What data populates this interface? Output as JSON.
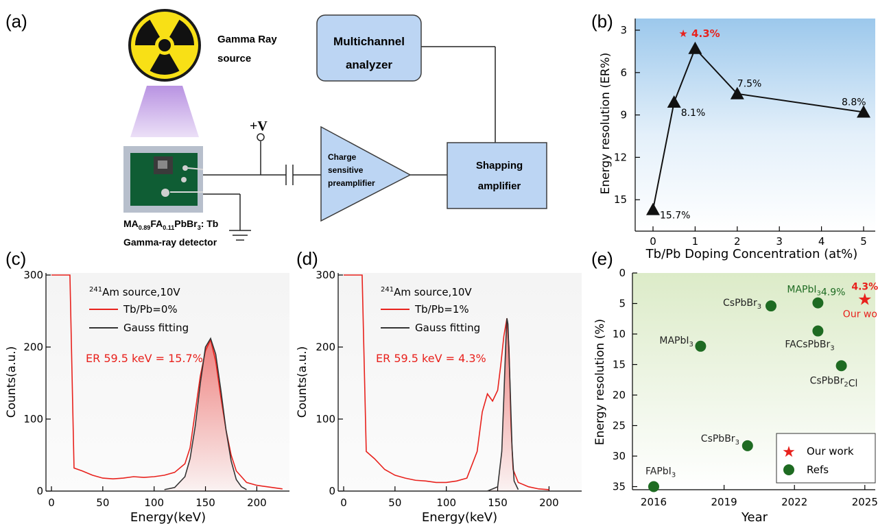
{
  "panels": {
    "a": "(a)",
    "b": "(b)",
    "c": "(c)",
    "d": "(d)",
    "e": "(e)"
  },
  "diagram": {
    "source_line1": "Gamma Ray",
    "source_line2": "source",
    "mca_line1": "Multichannel",
    "mca_line2": "analyzer",
    "voltage": "+V",
    "preamp_line1": "Charge",
    "preamp_line2": "sensitive",
    "preamp_line3": "preamplifier",
    "shaping_line1": "Shapping",
    "shaping_line2": "amplifier",
    "detector_line2": "Gamma-ray detector"
  },
  "colors": {
    "red": "#e8211c",
    "dark_green": "#1e6b22",
    "box_fill": "#bcd5f3",
    "box_stroke": "#3c3c3c"
  },
  "chart_data": [
    {
      "panel": "b",
      "type": "line",
      "marker": "triangle",
      "x": [
        0,
        0.5,
        1,
        2,
        5
      ],
      "y": [
        15.7,
        8.1,
        4.3,
        7.5,
        8.8
      ],
      "point_labels": [
        "15.7%",
        "8.1%",
        "4.3%",
        "7.5%",
        "8.8%"
      ],
      "highlight_label": "4.3%",
      "xlabel": "Tb/Pb Doping Concentration (at%)",
      "ylabel": "Energy resolution (ER%)",
      "x_ticks": [
        "0",
        "1",
        "2",
        "3",
        "4",
        "5"
      ],
      "y_ticks": [
        "3",
        "6",
        "9",
        "12",
        "15"
      ],
      "y_inverted": true
    },
    {
      "panel": "c",
      "type": "line",
      "xlabel": "Energy(keV)",
      "ylabel": "Counts(a.u.)",
      "x_ticks": [
        "0",
        "50",
        "100",
        "150",
        "200"
      ],
      "y_ticks": [
        "0",
        "100",
        "200",
        "300"
      ],
      "xlim": [
        0,
        225
      ],
      "ylim": [
        0,
        300
      ],
      "legend_title": "Am source,10V",
      "legend_sup": "241",
      "series": [
        {
          "name": "Tb/Pb=0%",
          "x": [
            0,
            10,
            18,
            22,
            30,
            40,
            50,
            60,
            70,
            80,
            90,
            100,
            110,
            120,
            130,
            135,
            140,
            145,
            150,
            155,
            160,
            165,
            170,
            175,
            180,
            185,
            190,
            200,
            210,
            220,
            225
          ],
          "y": [
            300,
            300,
            300,
            32,
            28,
            22,
            18,
            17,
            18,
            20,
            19,
            20,
            22,
            26,
            38,
            60,
            110,
            160,
            195,
            210,
            180,
            130,
            85,
            50,
            28,
            20,
            12,
            8,
            6,
            4,
            3
          ]
        },
        {
          "name": "Gauss fitting",
          "x": [
            110,
            120,
            130,
            135,
            140,
            145,
            150,
            155,
            160,
            165,
            170,
            175,
            180,
            185,
            190
          ],
          "y": [
            2,
            5,
            20,
            45,
            90,
            150,
            200,
            212,
            190,
            140,
            85,
            42,
            16,
            6,
            2
          ]
        }
      ],
      "annotation": "ER 59.5 keV = 15.7%"
    },
    {
      "panel": "d",
      "type": "line",
      "xlabel": "Energy(keV)",
      "ylabel": "Counts(a.u.)",
      "x_ticks": [
        "0",
        "50",
        "100",
        "150",
        "200"
      ],
      "y_ticks": [
        "0",
        "100",
        "200",
        "300"
      ],
      "xlim": [
        0,
        225
      ],
      "ylim": [
        0,
        300
      ],
      "legend_title": "Am source,10V",
      "legend_sup": "241",
      "series": [
        {
          "name": "Tb/Pb=1%",
          "x": [
            0,
            10,
            18,
            22,
            30,
            40,
            50,
            60,
            70,
            80,
            90,
            100,
            110,
            120,
            130,
            135,
            140,
            145,
            150,
            153,
            156,
            159,
            161,
            163,
            165,
            170,
            180,
            190,
            200
          ],
          "y": [
            300,
            300,
            300,
            55,
            45,
            30,
            22,
            18,
            15,
            14,
            12,
            12,
            14,
            18,
            55,
            110,
            135,
            125,
            140,
            175,
            215,
            240,
            200,
            90,
            30,
            12,
            6,
            3,
            2
          ]
        },
        {
          "name": "Gauss fitting",
          "x": [
            140,
            150,
            154,
            156,
            158,
            159,
            160,
            162,
            164,
            166,
            170
          ],
          "y": [
            0,
            6,
            55,
            130,
            210,
            240,
            232,
            150,
            60,
            14,
            2
          ]
        }
      ],
      "annotation": "ER 59.5 keV = 4.3%"
    },
    {
      "panel": "e",
      "type": "scatter",
      "xlabel": "Year",
      "ylabel": "Energy resolution (%)",
      "x_ticks": [
        "2016",
        "2019",
        "2022",
        "2025"
      ],
      "y_ticks": [
        "0",
        "5",
        "10",
        "15",
        "20",
        "25",
        "30",
        "35"
      ],
      "y_inverted": true,
      "series": [
        {
          "name": "Our work",
          "points": [
            {
              "x": 2025,
              "y": 4.3,
              "label": "4.3%",
              "label2": "Our work"
            }
          ]
        },
        {
          "name": "Refs",
          "points": [
            {
              "x": 2016,
              "y": 35,
              "label": "FAPbI3"
            },
            {
              "x": 2018,
              "y": 12,
              "label": "MAPbI3"
            },
            {
              "x": 2020,
              "y": 28.3,
              "label": "CsPbBr3"
            },
            {
              "x": 2021,
              "y": 5.4,
              "label": "CsPbBr3"
            },
            {
              "x": 2023,
              "y": 4.9,
              "label": "MAPbI3 4.9%"
            },
            {
              "x": 2023,
              "y": 9.5,
              "label": "FACsPbBr3"
            },
            {
              "x": 2024,
              "y": 15.2,
              "label": "CsPbBr2Cl"
            }
          ]
        }
      ]
    }
  ]
}
